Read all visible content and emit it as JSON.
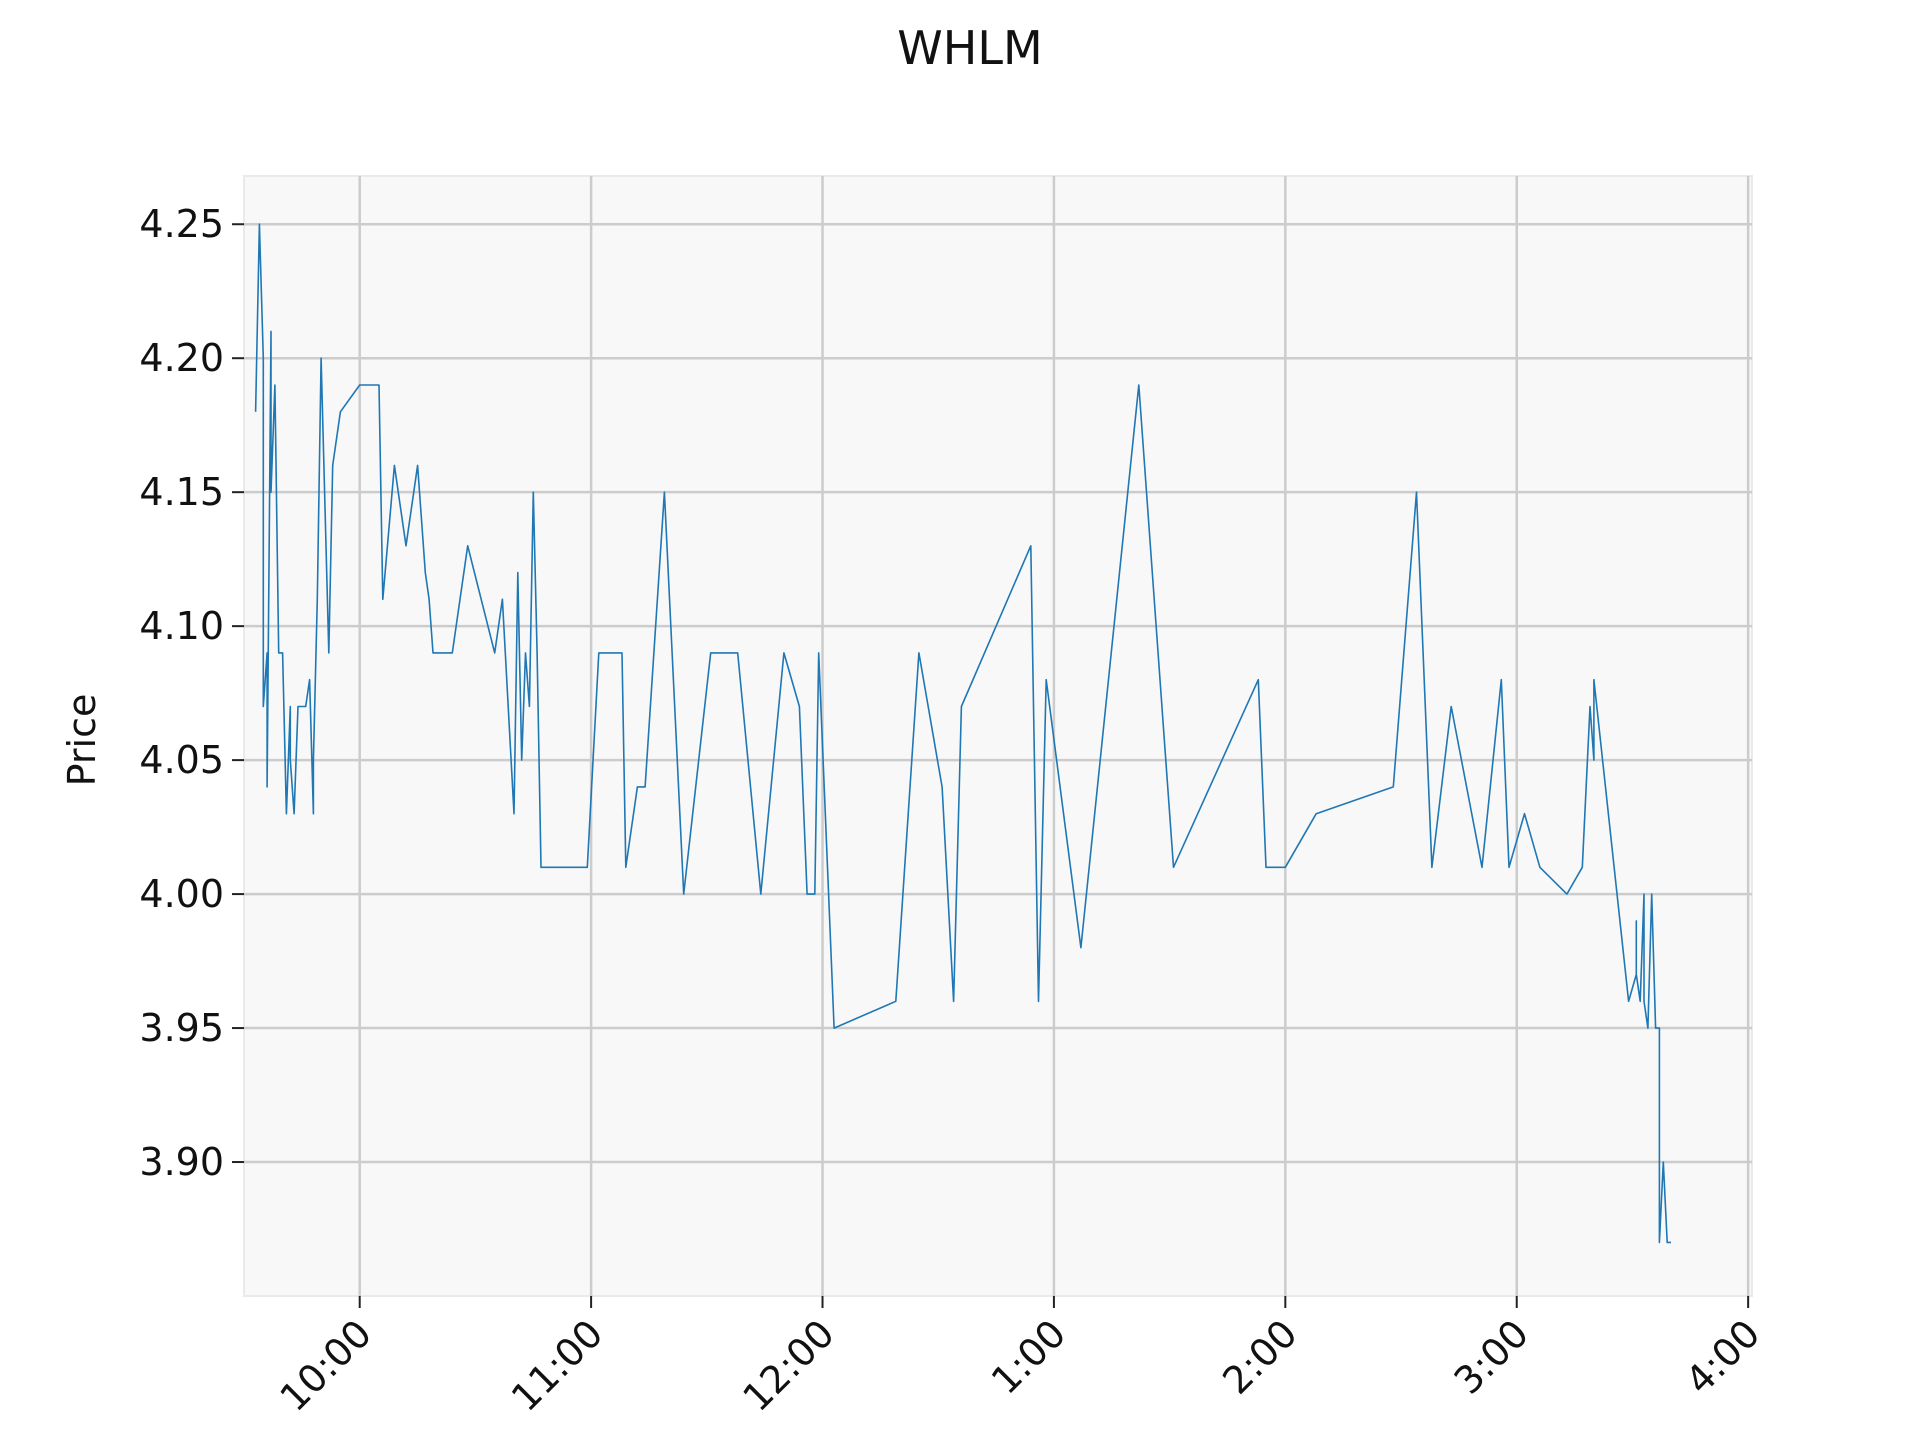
{
  "chart_data": {
    "type": "line",
    "title": "WHLM",
    "xlabel": "",
    "ylabel": "Price",
    "grid": true,
    "colors": {
      "line": "#1f77b4",
      "plot_background": "#f8f8f8",
      "grid": "#cccccc",
      "spine": "#eaeaea"
    },
    "x_unit": "time of day",
    "xlim": [
      "9:30",
      "4:01"
    ],
    "ylim": [
      3.85,
      4.268
    ],
    "xtick_labels": [
      "10:00",
      "11:00",
      "12:00",
      "1:00",
      "2:00",
      "3:00",
      "4:00"
    ],
    "xtick_times": [
      "10:00",
      "11:00",
      "12:00",
      "13:00",
      "14:00",
      "15:00",
      "16:00"
    ],
    "ytick_labels": [
      "3.90",
      "3.95",
      "4.00",
      "4.05",
      "4.10",
      "4.15",
      "4.20",
      "4.25"
    ],
    "ytick_values": [
      3.9,
      3.95,
      4.0,
      4.05,
      4.1,
      4.15,
      4.2,
      4.25
    ],
    "series": [
      {
        "x": [
          "9:33",
          "9:34",
          "9:35",
          "9:35",
          "9:36",
          "9:36",
          "9:37",
          "9:37",
          "9:38",
          "9:39",
          "9:40",
          "9:41",
          "9:42",
          "9:42",
          "9:43",
          "9:44",
          "9:45",
          "9:46",
          "9:47",
          "9:48",
          "9:48",
          "9:49",
          "9:50",
          "9:52",
          "9:53",
          "9:55",
          "10:00",
          "10:05",
          "10:06",
          "10:09",
          "10:12",
          "10:15",
          "10:17",
          "10:18",
          "10:19",
          "10:24",
          "10:28",
          "10:35",
          "10:37",
          "10:40",
          "10:41",
          "10:42",
          "10:43",
          "10:44",
          "10:45",
          "10:46",
          "10:47",
          "10:59",
          "11:02",
          "11:08",
          "11:09",
          "11:12",
          "11:14",
          "11:19",
          "11:24",
          "11:31",
          "11:38",
          "11:44",
          "11:50",
          "11:54",
          "11:56",
          "11:58",
          "11:59",
          "12:03",
          "12:19",
          "12:25",
          "12:31",
          "12:34",
          "12:36",
          "12:54",
          "12:56",
          "12:58",
          "13:07",
          "13:22",
          "13:31",
          "13:53",
          "13:55",
          "14:00",
          "14:08",
          "14:28",
          "14:34",
          "14:38",
          "14:43",
          "14:51",
          "14:56",
          "14:58",
          "15:02",
          "15:06",
          "15:13",
          "15:17",
          "15:19",
          "15:20",
          "15:20",
          "15:29",
          "15:31",
          "15:31",
          "15:31",
          "15:32",
          "15:33",
          "15:33",
          "15:34",
          "15:35",
          "15:36",
          "15:37",
          "15:37",
          "15:38",
          "15:39",
          "15:39",
          "15:40"
        ],
        "y": [
          4.18,
          4.25,
          4.2,
          4.07,
          4.09,
          4.04,
          4.21,
          4.15,
          4.19,
          4.09,
          4.09,
          4.03,
          4.07,
          4.05,
          4.03,
          4.07,
          4.07,
          4.07,
          4.08,
          4.03,
          4.05,
          4.11,
          4.2,
          4.09,
          4.16,
          4.18,
          4.19,
          4.19,
          4.11,
          4.16,
          4.13,
          4.16,
          4.12,
          4.11,
          4.09,
          4.09,
          4.13,
          4.09,
          4.11,
          4.03,
          4.12,
          4.05,
          4.09,
          4.07,
          4.15,
          4.09,
          4.01,
          4.01,
          4.09,
          4.09,
          4.01,
          4.04,
          4.04,
          4.15,
          4.0,
          4.09,
          4.09,
          4.0,
          4.09,
          4.07,
          4.0,
          4.0,
          4.09,
          3.95,
          3.96,
          4.09,
          4.04,
          3.96,
          4.07,
          4.13,
          3.96,
          4.08,
          3.98,
          4.19,
          4.01,
          4.08,
          4.01,
          4.01,
          4.03,
          4.04,
          4.15,
          4.01,
          4.07,
          4.01,
          4.08,
          4.01,
          4.03,
          4.01,
          4.0,
          4.01,
          4.07,
          4.05,
          4.08,
          3.96,
          3.97,
          3.99,
          3.97,
          3.96,
          4.0,
          3.96,
          3.95,
          4.0,
          3.95,
          3.95,
          3.87,
          3.9,
          3.87,
          3.87,
          3.87
        ]
      }
    ]
  }
}
